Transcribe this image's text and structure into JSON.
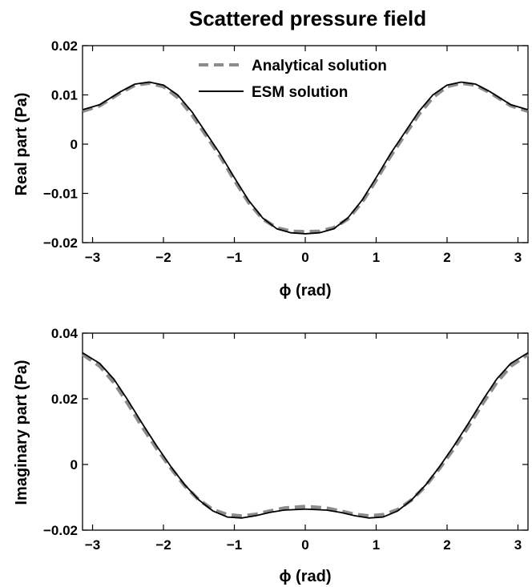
{
  "figure_title": "Scattered pressure field",
  "legend": {
    "analytical": "Analytical solution",
    "esm": "ESM solution"
  },
  "colors": {
    "analytical": "#8c8c8c",
    "esm": "#000000"
  },
  "chart_data": [
    {
      "type": "line",
      "title": "",
      "xlabel": "ϕ (rad)",
      "ylabel": "Real part (Pa)",
      "xlim": [
        -3.14159,
        3.14159
      ],
      "ylim": [
        -0.02,
        0.02
      ],
      "xticks": [
        -3,
        -2,
        -1,
        0,
        1,
        2,
        3
      ],
      "xtick_labels": [
        "−3",
        "−2",
        "−1",
        "0",
        "1",
        "2",
        "3"
      ],
      "yticks": [
        -0.02,
        -0.01,
        0,
        0.01,
        0.02
      ],
      "ytick_labels": [
        "−0.02",
        "−0.01",
        "0",
        "0.01",
        "0.02"
      ],
      "legend_position": "top-center",
      "grid": false,
      "series": [
        {
          "name": "Analytical solution",
          "style": "dashed",
          "x": [
            -3.14,
            -2.9,
            -2.6,
            -2.4,
            -2.2,
            -2.0,
            -1.8,
            -1.6,
            -1.4,
            -1.2,
            -1.0,
            -0.8,
            -0.6,
            -0.4,
            -0.2,
            0,
            0.2,
            0.4,
            0.6,
            0.8,
            1.0,
            1.2,
            1.4,
            1.6,
            1.8,
            2.0,
            2.2,
            2.4,
            2.6,
            2.9,
            3.14
          ],
          "y": [
            0.0067,
            0.0078,
            0.0105,
            0.012,
            0.0124,
            0.0117,
            0.0095,
            0.006,
            0.0018,
            -0.0025,
            -0.0073,
            -0.0118,
            -0.0152,
            -0.017,
            -0.0177,
            -0.0178,
            -0.0177,
            -0.017,
            -0.0152,
            -0.0118,
            -0.0073,
            -0.0025,
            0.0018,
            0.006,
            0.0095,
            0.0117,
            0.0124,
            0.012,
            0.0105,
            0.0078,
            0.0067
          ]
        },
        {
          "name": "ESM solution",
          "style": "solid",
          "x": [
            -3.14,
            -2.9,
            -2.6,
            -2.4,
            -2.2,
            -2.0,
            -1.8,
            -1.6,
            -1.4,
            -1.2,
            -1.0,
            -0.8,
            -0.6,
            -0.4,
            -0.2,
            0,
            0.2,
            0.4,
            0.6,
            0.8,
            1.0,
            1.2,
            1.4,
            1.6,
            1.8,
            2.0,
            2.2,
            2.4,
            2.6,
            2.9,
            3.14
          ],
          "y": [
            0.007,
            0.008,
            0.0107,
            0.0122,
            0.0126,
            0.012,
            0.01,
            0.0066,
            0.0023,
            -0.002,
            -0.0068,
            -0.0114,
            -0.015,
            -0.0172,
            -0.018,
            -0.0182,
            -0.018,
            -0.0172,
            -0.015,
            -0.0114,
            -0.0068,
            -0.002,
            0.0023,
            0.0066,
            0.01,
            0.012,
            0.0126,
            0.0122,
            0.0107,
            0.008,
            0.007
          ]
        }
      ]
    },
    {
      "type": "line",
      "title": "",
      "xlabel": "ϕ (rad)",
      "ylabel": "Imaginary part (Pa)",
      "xlim": [
        -3.14159,
        3.14159
      ],
      "ylim": [
        -0.02,
        0.04
      ],
      "xticks": [
        -3,
        -2,
        -1,
        0,
        1,
        2,
        3
      ],
      "xtick_labels": [
        "−3",
        "−2",
        "−1",
        "0",
        "1",
        "2",
        "3"
      ],
      "yticks": [
        -0.02,
        0,
        0.02,
        0.04
      ],
      "ytick_labels": [
        "−0.02",
        "0",
        "0.02",
        "0.04"
      ],
      "grid": false,
      "series": [
        {
          "name": "Analytical solution",
          "style": "dashed",
          "x": [
            -3.14,
            -2.9,
            -2.7,
            -2.5,
            -2.3,
            -2.1,
            -1.9,
            -1.7,
            -1.5,
            -1.3,
            -1.1,
            -0.9,
            -0.7,
            -0.5,
            -0.3,
            0,
            0.3,
            0.5,
            0.7,
            0.9,
            1.1,
            1.3,
            1.5,
            1.7,
            1.9,
            2.1,
            2.3,
            2.5,
            2.7,
            2.9,
            3.14
          ],
          "y": [
            0.0335,
            0.03,
            0.025,
            0.0185,
            0.0115,
            0.005,
            -0.001,
            -0.0065,
            -0.0108,
            -0.0138,
            -0.0153,
            -0.0157,
            -0.0152,
            -0.0142,
            -0.0133,
            -0.0128,
            -0.0133,
            -0.0142,
            -0.0152,
            -0.0157,
            -0.0153,
            -0.0138,
            -0.0108,
            -0.0065,
            -0.001,
            0.005,
            0.0115,
            0.0185,
            0.025,
            0.03,
            0.0335
          ]
        },
        {
          "name": "ESM solution",
          "style": "solid",
          "x": [
            -3.14,
            -2.9,
            -2.7,
            -2.5,
            -2.3,
            -2.1,
            -1.9,
            -1.7,
            -1.5,
            -1.3,
            -1.1,
            -0.9,
            -0.7,
            -0.5,
            -0.3,
            0,
            0.3,
            0.5,
            0.7,
            0.9,
            1.1,
            1.3,
            1.5,
            1.7,
            1.9,
            2.1,
            2.3,
            2.5,
            2.7,
            2.9,
            3.14
          ],
          "y": [
            0.034,
            0.0308,
            0.026,
            0.0195,
            0.0125,
            0.0058,
            -0.0005,
            -0.0062,
            -0.0108,
            -0.0142,
            -0.016,
            -0.0163,
            -0.0156,
            -0.0146,
            -0.0139,
            -0.0136,
            -0.0139,
            -0.0146,
            -0.0156,
            -0.0163,
            -0.016,
            -0.0142,
            -0.0108,
            -0.0062,
            -0.0005,
            0.0058,
            0.0125,
            0.0195,
            0.026,
            0.0308,
            0.034
          ]
        }
      ]
    }
  ]
}
